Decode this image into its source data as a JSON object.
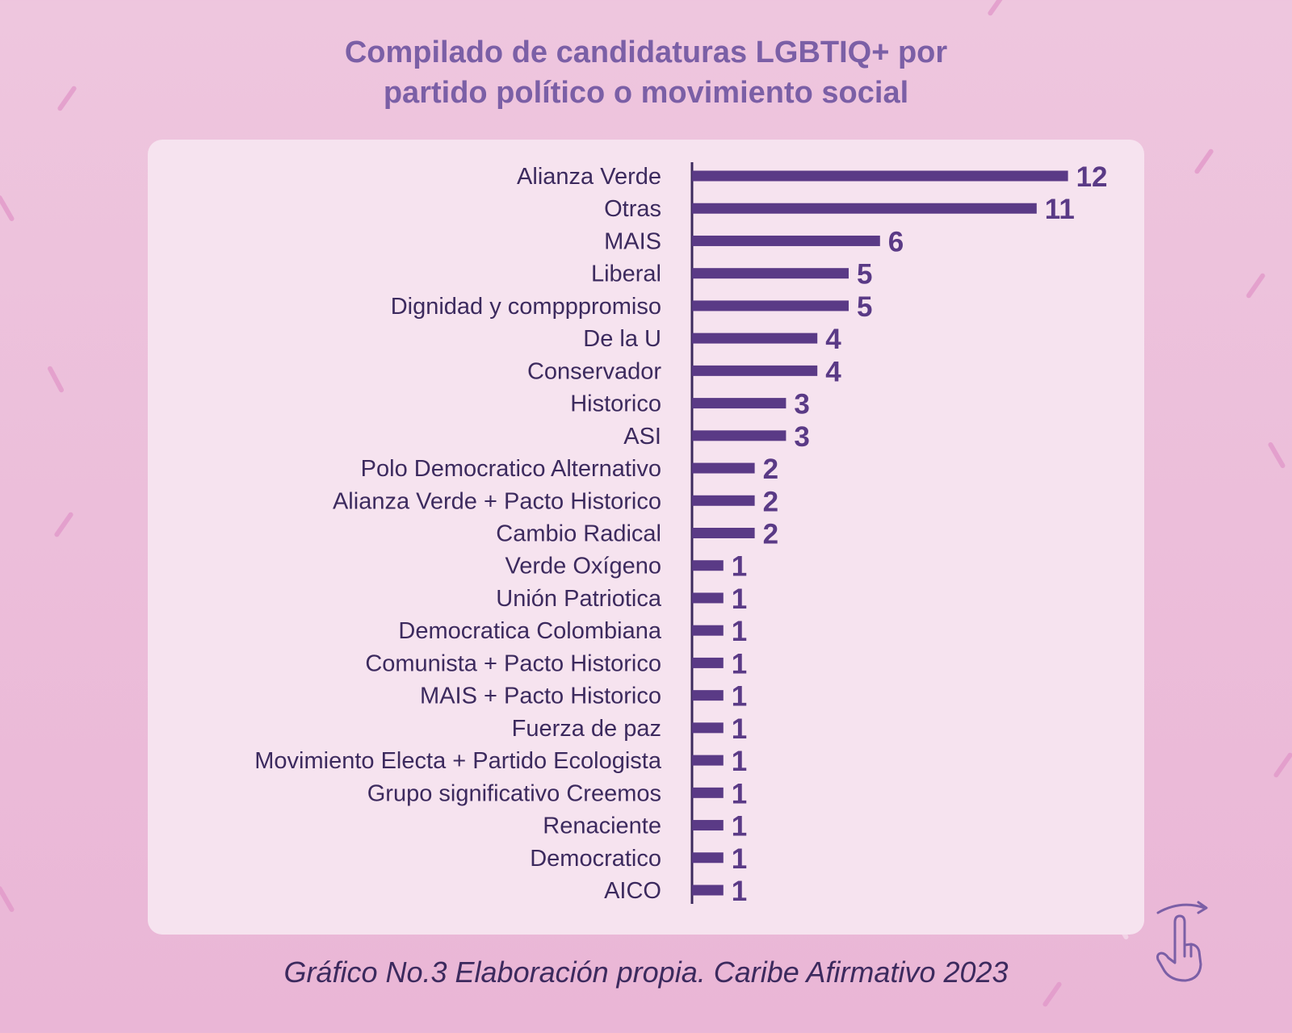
{
  "chart_data": {
    "type": "bar",
    "orientation": "horizontal",
    "title": "Compilado de candidaturas LGBTIQ+ por partido político o movimiento social",
    "title_lines": [
      "Compilado de candidaturas LGBTIQ+ por",
      "partido político o movimiento social"
    ],
    "categories": [
      "Alianza Verde",
      "Otras",
      "MAIS",
      "Liberal",
      "Dignidad y compppromiso",
      "De la U",
      "Conservador",
      "Historico",
      "ASI",
      "Polo Democratico Alternativo",
      "Alianza Verde + Pacto Historico",
      "Cambio Radical",
      "Verde Oxígeno",
      "Unión Patriotica",
      "Democratica Colombiana",
      "Comunista + Pacto Historico",
      "MAIS + Pacto Historico",
      "Fuerza de paz",
      "Movimiento Electa + Partido Ecologista",
      "Grupo significativo Creemos",
      "Renaciente",
      "Democratico",
      "AICO"
    ],
    "values": [
      12,
      11,
      6,
      5,
      5,
      4,
      4,
      3,
      3,
      2,
      2,
      2,
      1,
      1,
      1,
      1,
      1,
      1,
      1,
      1,
      1,
      1,
      1
    ],
    "xlabel": "",
    "ylabel": "",
    "grid": false,
    "legend": "none",
    "bar_color": "#5a3a86",
    "data_labels": true
  },
  "caption": "Gráfico No.3 Elaboración propia. Caribe Afirmativo 2023",
  "colors": {
    "background": "#ecbedb",
    "card": "#f6e3ef",
    "title": "#7b5fa6",
    "text": "#3c2a5e",
    "bar": "#5a3a86"
  },
  "icons": [
    "swipe-hand-icon"
  ]
}
